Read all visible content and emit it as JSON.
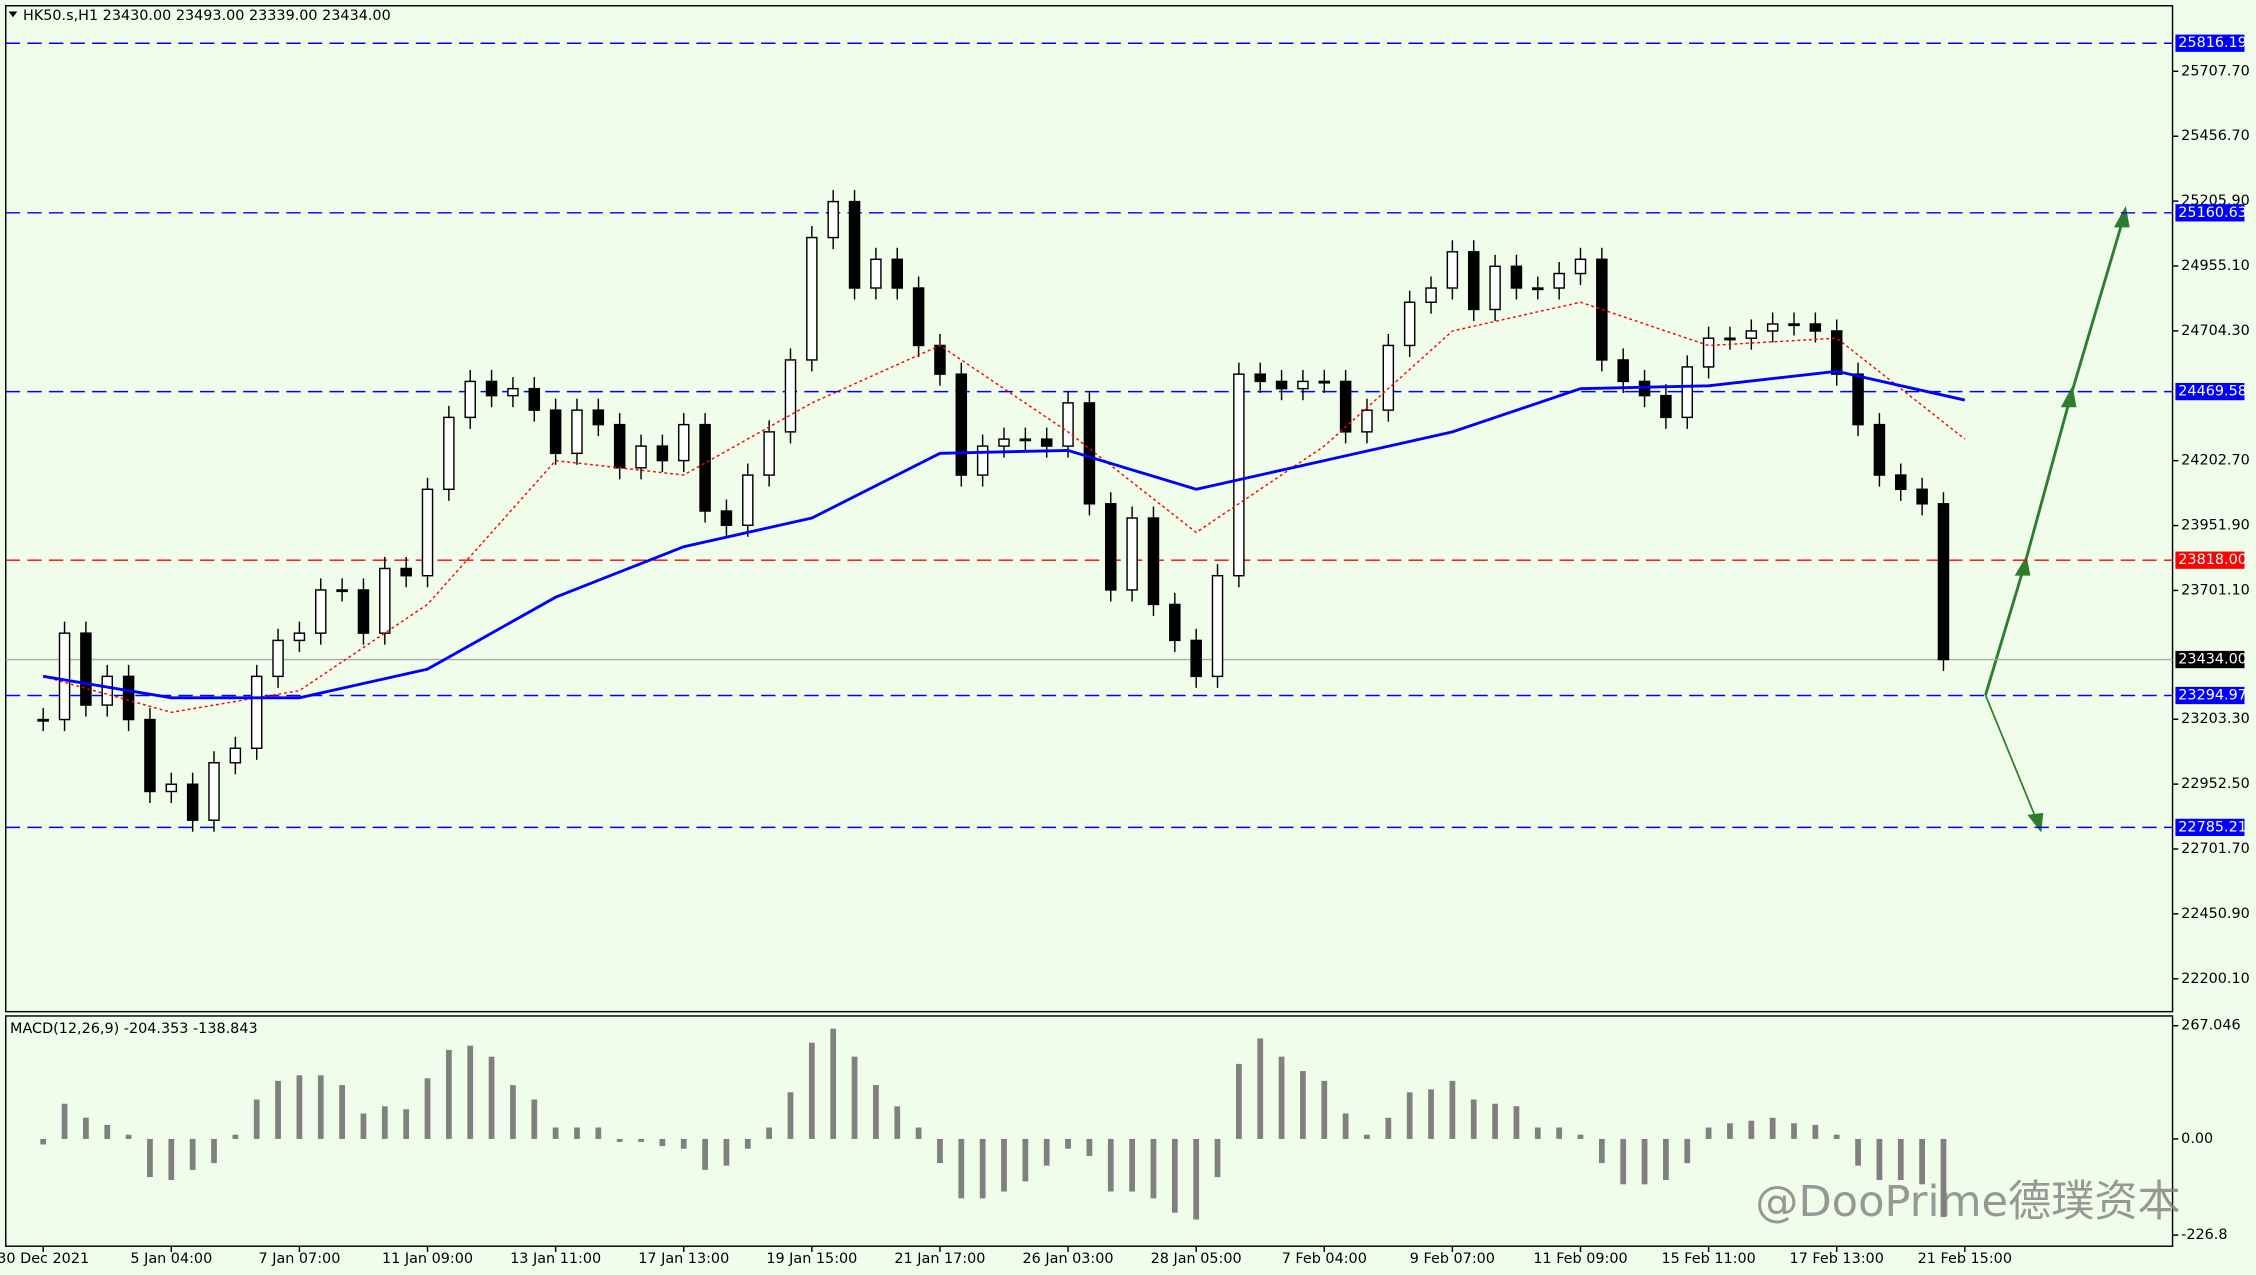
{
  "chart_data": {
    "type": "candlestick",
    "title": "HK50.s,H1  23430.00 23493.00 23339.00 23434.00",
    "watermark": "@DooPrime德璞资本",
    "x_labels": [
      "30 Dec 2021",
      "5 Jan 04:00",
      "7 Jan 07:00",
      "11 Jan 09:00",
      "13 Jan 11:00",
      "17 Jan 13:00",
      "19 Jan 15:00",
      "21 Jan 17:00",
      "26 Jan 03:00",
      "28 Jan 05:00",
      "7 Feb 04:00",
      "9 Feb 07:00",
      "11 Feb 09:00",
      "15 Feb 11:00",
      "17 Feb 13:00",
      "21 Feb 15:00"
    ],
    "series": [
      {
        "color": "#000000",
        "values": [
          23202,
          23536,
          23258,
          23369,
          23202,
          22924,
          22952,
          22813,
          23035,
          23091,
          23369,
          23508,
          23536,
          23703,
          23703,
          23536,
          23786,
          23758,
          24092,
          24370,
          24509,
          24454,
          24481,
          24398,
          24231,
          24398,
          24342,
          24175,
          24259,
          24203,
          24342,
          24008,
          23953,
          24147,
          24314,
          24592,
          25065,
          25204,
          24870,
          24981,
          24870,
          24648,
          24537,
          24147,
          24259,
          24286,
          24286,
          24259,
          24426,
          24036,
          23703,
          23981,
          23647,
          23508,
          23369,
          23758,
          24537,
          24509,
          24481,
          24509,
          24509,
          24314,
          24398,
          24648,
          24815,
          24870,
          25010,
          24787,
          24954,
          24870,
          24870,
          24926,
          24981,
          24592,
          24509,
          24454,
          24370,
          24565,
          24676,
          24676,
          24704,
          24731,
          24731,
          24704,
          24537,
          24342,
          24147,
          24092,
          24036,
          23434
        ]
      }
    ],
    "ma_slow": {
      "color": "#0000ff",
      "values": [
        23369,
        23286,
        23286,
        23397,
        23675,
        23870,
        23981,
        24231,
        24242,
        24092,
        24203,
        24314,
        24481,
        24492,
        24548,
        24437
      ]
    },
    "ma_fast": {
      "color": "#ff0000",
      "values": [
        23369,
        23230,
        23314,
        23647,
        24203,
        24147,
        24426,
        24648,
        24314,
        23925,
        24259,
        24704,
        24815,
        24648,
        24676,
        24286
      ]
    },
    "levels": [
      {
        "value": 25816.19,
        "label": "25816.19",
        "color": "#0000ff"
      },
      {
        "value": 25160.63,
        "label": "25160.63",
        "color": "#0000ff"
      },
      {
        "value": 24469.58,
        "label": "24469.58",
        "color": "#0000ff"
      },
      {
        "value": 23818,
        "label": "23818.00",
        "color": "#ff0000"
      },
      {
        "value": 23294.97,
        "label": "23294.97",
        "color": "#0000ff"
      },
      {
        "value": 22785.21,
        "label": "22785.21",
        "color": "#0000ff"
      }
    ],
    "current_price": {
      "value": 23434,
      "label": "23434.00"
    },
    "ylim": [
      22073,
      25961
    ],
    "yticks": [
      {
        "value": 25707.7,
        "label": "25707.70"
      },
      {
        "value": 25456.7,
        "label": "25456.70"
      },
      {
        "value": 25205.9,
        "label": "25205.90"
      },
      {
        "value": 24955.1,
        "label": "24955.10"
      },
      {
        "value": 24704.3,
        "label": "24704.30"
      },
      {
        "value": 24202.7,
        "label": "24202.70"
      },
      {
        "value": 23951.9,
        "label": "23951.90"
      },
      {
        "value": 23701.1,
        "label": "23701.10"
      },
      {
        "value": 23203.3,
        "label": "23203.30"
      },
      {
        "value": 22952.5,
        "label": "22952.50"
      },
      {
        "value": 22701.7,
        "label": "22701.70"
      },
      {
        "value": 22450.9,
        "label": "22450.90"
      },
      {
        "value": 22200.1,
        "label": "22200.10"
      }
    ],
    "macd": {
      "title": "MACD(12,26,9) -204.353 -138.843",
      "color": "#808080",
      "values": [
        -13,
        83,
        50,
        33,
        10,
        -90,
        -97,
        -73,
        -57,
        10,
        93,
        137,
        150,
        150,
        127,
        60,
        77,
        70,
        143,
        210,
        220,
        194,
        127,
        93,
        27,
        27,
        27,
        -7,
        -7,
        -17,
        -23,
        -73,
        -63,
        -23,
        27,
        110,
        227,
        260,
        194,
        127,
        77,
        27,
        -57,
        -140,
        -140,
        -124,
        -100,
        -63,
        -23,
        -40,
        -124,
        -124,
        -140,
        -174,
        -190,
        -90,
        177,
        237,
        194,
        160,
        137,
        60,
        10,
        50,
        110,
        117,
        137,
        93,
        83,
        77,
        27,
        27,
        10,
        -57,
        -107,
        -107,
        -97,
        -57,
        27,
        37,
        43,
        50,
        37,
        33,
        10,
        -63,
        -97,
        -97,
        -107,
        -184
      ],
      "ylim": [
        -253,
        290
      ],
      "yticks": [
        267.046,
        {
          "value": 0,
          "label": "0.00"
        },
        -226.8
      ]
    }
  }
}
